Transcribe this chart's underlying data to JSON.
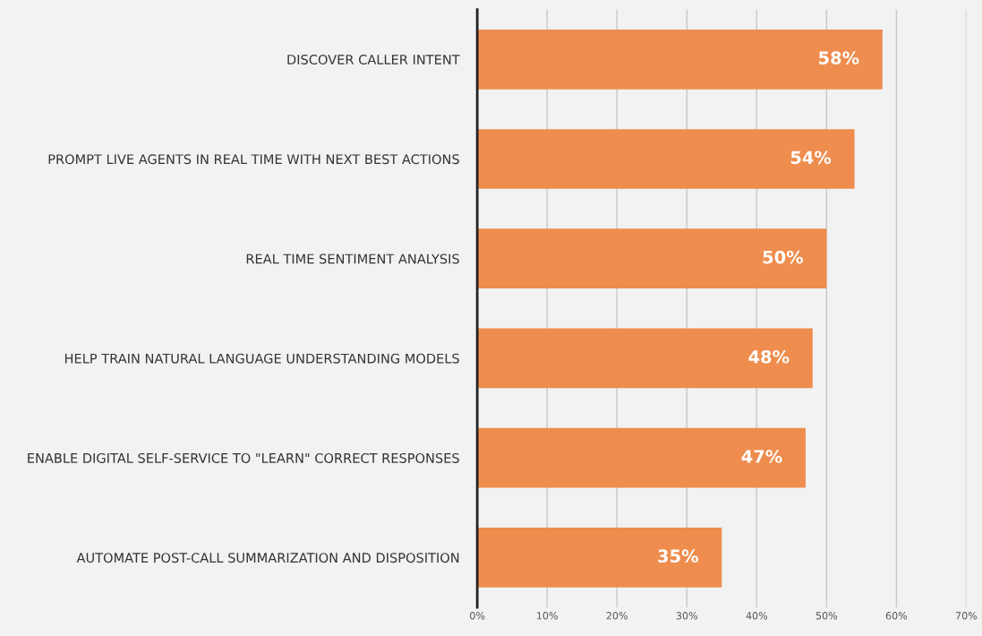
{
  "chart_data": {
    "type": "bar",
    "orientation": "horizontal",
    "categories": [
      "DISCOVER CALLER INTENT",
      "PROMPT LIVE AGENTS IN REAL TIME WITH NEXT BEST ACTIONS",
      "REAL TIME SENTIMENT ANALYSIS",
      "HELP TRAIN NATURAL LANGUAGE UNDERSTANDING MODELS",
      "ENABLE DIGITAL SELF-SERVICE TO \"LEARN\" CORRECT RESPONSES",
      "AUTOMATE POST-CALL SUMMARIZATION AND DISPOSITION"
    ],
    "values": [
      58,
      54,
      50,
      48,
      47,
      35
    ],
    "value_labels": [
      "58%",
      "54%",
      "50%",
      "48%",
      "47%",
      "35%"
    ],
    "color": "#ee8d4e",
    "xlim": [
      0,
      70
    ],
    "xticks": [
      {
        "value": 0,
        "label": "0%"
      },
      {
        "value": 10,
        "label": "10%"
      },
      {
        "value": 20,
        "label": "20%"
      },
      {
        "value": 30,
        "label": "30%"
      },
      {
        "value": 40,
        "label": "40%"
      },
      {
        "value": 50,
        "label": "50%"
      },
      {
        "value": 60,
        "label": "60%"
      },
      {
        "value": 70,
        "label": "70%"
      }
    ],
    "grid": "x"
  }
}
